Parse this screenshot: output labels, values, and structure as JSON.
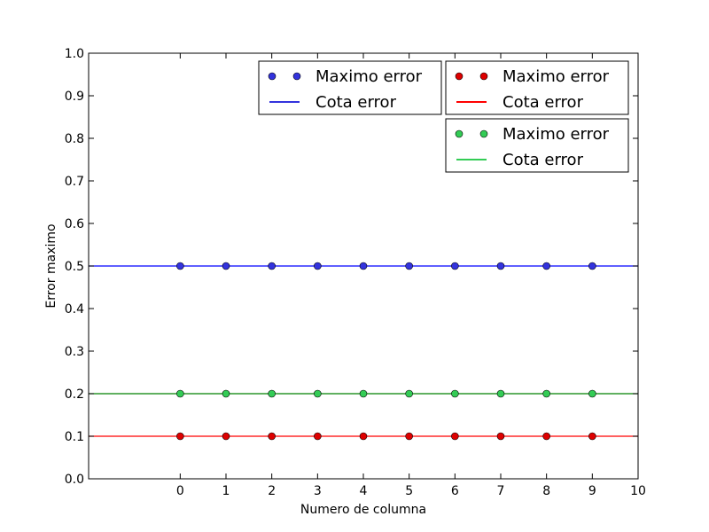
{
  "chart_data": {
    "type": "line",
    "title": "",
    "xlabel": "Numero de columna",
    "ylabel": "Error maximo",
    "xlim": [
      -2,
      10
    ],
    "ylim": [
      0.0,
      1.0
    ],
    "x_ticks": [
      "0",
      "1",
      "2",
      "3",
      "4",
      "5",
      "6",
      "7",
      "8",
      "9",
      "10"
    ],
    "y_ticks": [
      "0.0",
      "0.1",
      "0.2",
      "0.3",
      "0.4",
      "0.5",
      "0.6",
      "0.7",
      "0.8",
      "0.9",
      "1.0"
    ],
    "grid": false,
    "x": [
      0,
      1,
      2,
      3,
      4,
      5,
      6,
      7,
      8,
      9
    ],
    "series": [
      {
        "name": "Maximo error",
        "color": "#3333dd",
        "marker": "circle",
        "values": [
          0.5,
          0.5,
          0.5,
          0.5,
          0.5,
          0.5,
          0.5,
          0.5,
          0.5,
          0.5
        ]
      },
      {
        "name": "Cota error",
        "color": "#0000ff",
        "style": "line",
        "constant": 0.5
      },
      {
        "name": "Maximo error",
        "color": "#dd0000",
        "marker": "circle",
        "values": [
          0.1,
          0.1,
          0.1,
          0.1,
          0.1,
          0.1,
          0.1,
          0.1,
          0.1,
          0.1
        ]
      },
      {
        "name": "Cota error",
        "color": "#ff0000",
        "style": "line",
        "constant": 0.1
      },
      {
        "name": "Maximo error",
        "color": "#33cc55",
        "marker": "circle",
        "values": [
          0.2,
          0.2,
          0.2,
          0.2,
          0.2,
          0.2,
          0.2,
          0.2,
          0.2,
          0.2
        ]
      },
      {
        "name": "Cota error",
        "color": "#008000",
        "style": "line",
        "constant": 0.2
      }
    ],
    "legends": [
      {
        "placement": "top-center",
        "entries": [
          {
            "label": "Maximo error",
            "kind": "marker",
            "color": "#3333dd"
          },
          {
            "label": "Cota error",
            "kind": "line",
            "color": "#3333dd"
          }
        ]
      },
      {
        "placement": "top-right",
        "entries": [
          {
            "label": "Maximo error",
            "kind": "marker",
            "color": "#dd0000"
          },
          {
            "label": "Cota error",
            "kind": "line",
            "color": "#ff0000"
          }
        ]
      },
      {
        "placement": "upper-right",
        "entries": [
          {
            "label": "Maximo error",
            "kind": "marker",
            "color": "#33cc55"
          },
          {
            "label": "Cota error",
            "kind": "line",
            "color": "#33cc55"
          }
        ]
      }
    ]
  }
}
